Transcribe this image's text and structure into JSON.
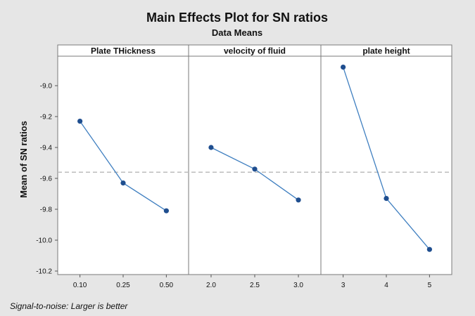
{
  "chart_data": {
    "type": "line",
    "title": "Main Effects Plot for SN ratios",
    "subtitle": "Data Means",
    "ylabel": "Mean of SN ratios",
    "ylim": [
      -10.2,
      -8.8
    ],
    "yticks": [
      -9.0,
      -9.2,
      -9.4,
      -9.6,
      -9.8,
      -10.0,
      -10.2
    ],
    "ytick_labels": [
      "-9.0",
      "-9.2",
      "-9.4",
      "-9.6",
      "-9.8",
      "-10.0",
      "-10.2"
    ],
    "reference_line": -9.56,
    "panels": [
      {
        "name": "Plate THickness",
        "categories": [
          "0.10",
          "0.25",
          "0.50"
        ],
        "values": [
          -9.23,
          -9.63,
          -9.81
        ]
      },
      {
        "name": "velocity of fluid",
        "categories": [
          "2.0",
          "2.5",
          "3.0"
        ],
        "values": [
          -9.4,
          -9.54,
          -9.74
        ]
      },
      {
        "name": "plate height",
        "categories": [
          "3",
          "4",
          "5"
        ],
        "values": [
          -8.88,
          -9.73,
          -10.06
        ]
      }
    ],
    "footnote": "Signal-to-noise: Larger is better",
    "colors": {
      "line": "#3f7fc0",
      "marker": "#1f4e8f",
      "reference": "#bdbdbd",
      "background": "#e6e6e6",
      "plot_area": "#ffffff"
    }
  }
}
